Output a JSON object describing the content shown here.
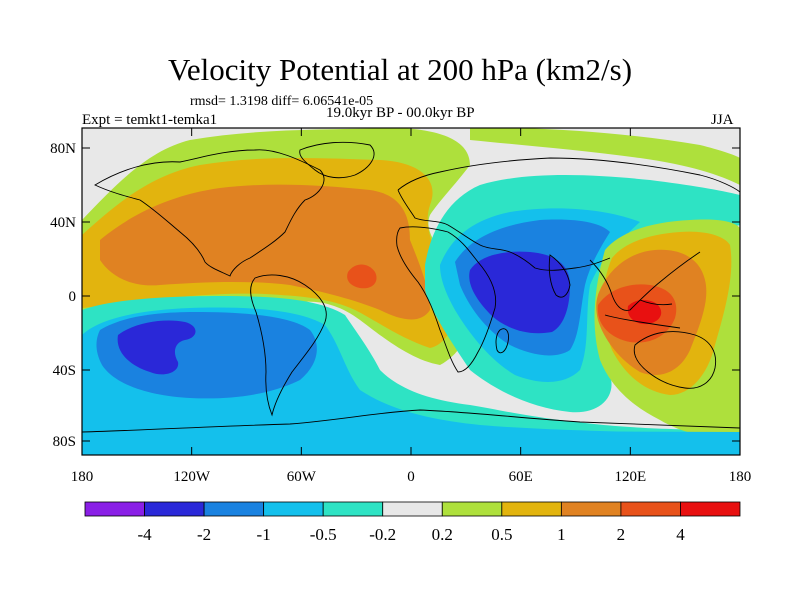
{
  "title": "Velocity Potential at 200 hPa (km2/s)",
  "stats": "rmsd= 1.3198 diff= 6.06541e-05",
  "experiment": "Expt = temkt1-temka1",
  "period": "19.0kyr BP - 00.0kyr BP",
  "season": "JJA",
  "lat_ticks": [
    "80N",
    "40N",
    "0",
    "40S",
    "80S"
  ],
  "lon_ticks": [
    "180",
    "120W",
    "60W",
    "0",
    "60E",
    "120E",
    "180"
  ],
  "colorbar": {
    "labels": [
      "-4",
      "-2",
      "-1",
      "-0.5",
      "-0.2",
      "0.2",
      "0.5",
      "1",
      "2",
      "4"
    ],
    "colors": [
      "#8a1fe6",
      "#2a28d8",
      "#1a82e0",
      "#14c0ec",
      "#2ee3c4",
      "#e8e8e8",
      "#aee03c",
      "#e2b40e",
      "#e08222",
      "#e8521a",
      "#e81010"
    ]
  }
}
